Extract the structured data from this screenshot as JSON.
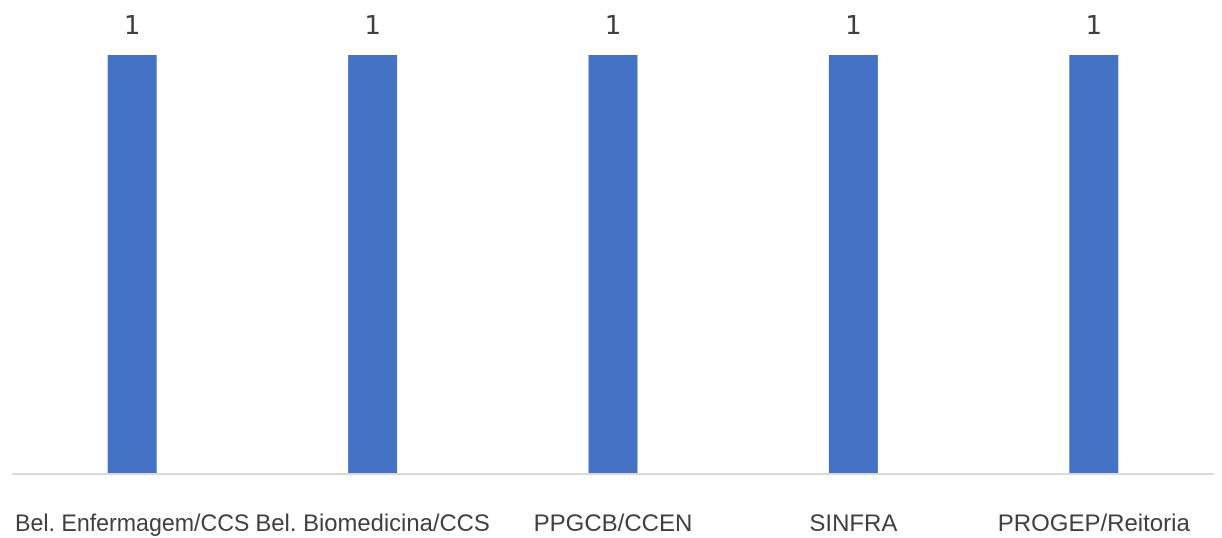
{
  "chart_data": {
    "type": "bar",
    "title": "",
    "xlabel": "",
    "ylabel": "",
    "categories": [
      "Bel. Enfermagem/CCS",
      "Bel. Biomedicina/CCS",
      "PPGCB/CCEN",
      "SINFRA",
      "PROGEP/Reitoria"
    ],
    "values": [
      1,
      1,
      1,
      1,
      1
    ],
    "data_labels": [
      "1",
      "1",
      "1",
      "1",
      "1"
    ],
    "ylim": [
      0,
      1
    ],
    "grid": false,
    "legend": "none",
    "colors": {
      "bar": "#4472C4",
      "axis": "#D9D9D9",
      "text": "#404040"
    }
  }
}
